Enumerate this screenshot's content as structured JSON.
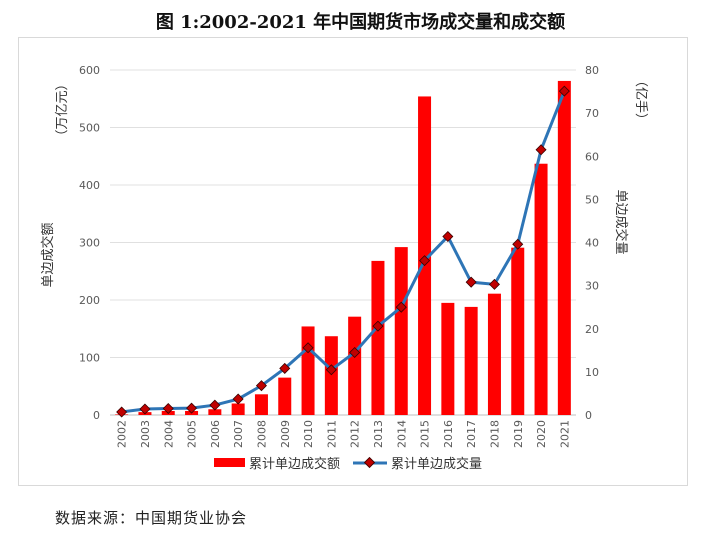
{
  "title": "图 1:2002-2021 年中国期货市场成交量和成交额",
  "source": "数据来源：中国期货业协会",
  "chart_data": {
    "type": "bar+line",
    "categories": [
      "2002",
      "2003",
      "2004",
      "2005",
      "2006",
      "2007",
      "2008",
      "2009",
      "2010",
      "2011",
      "2012",
      "2013",
      "2014",
      "2015",
      "2016",
      "2017",
      "2018",
      "2019",
      "2020",
      "2021"
    ],
    "series": [
      {
        "name": "累计单边成交额",
        "type": "bar",
        "axis": "left",
        "color": "#ff0000",
        "values": [
          1,
          5,
          7,
          7,
          10,
          20,
          36,
          65,
          154,
          137,
          171,
          268,
          292,
          554,
          195,
          188,
          211,
          291,
          437,
          581
        ]
      },
      {
        "name": "累计单边成交量",
        "type": "line",
        "axis": "right",
        "color": "#2e75b6",
        "marker_color": "#c00000",
        "values": [
          0.7,
          1.4,
          1.5,
          1.6,
          2.3,
          3.7,
          6.8,
          10.8,
          15.6,
          10.5,
          14.5,
          20.6,
          25.0,
          35.8,
          41.4,
          30.8,
          30.3,
          39.6,
          61.5,
          75.1
        ]
      }
    ],
    "y_left": {
      "label": "单边成交额",
      "unit": "（万亿元）",
      "ylim": [
        0,
        600
      ],
      "ticks": [
        0,
        100,
        200,
        300,
        400,
        500,
        600
      ]
    },
    "y_right": {
      "label": "单边成交量",
      "unit": "（亿手）",
      "ylim": [
        0,
        80
      ],
      "ticks": [
        0,
        10,
        20,
        30,
        40,
        50,
        60,
        70,
        80
      ]
    },
    "grid": true,
    "legend": "bottom"
  }
}
